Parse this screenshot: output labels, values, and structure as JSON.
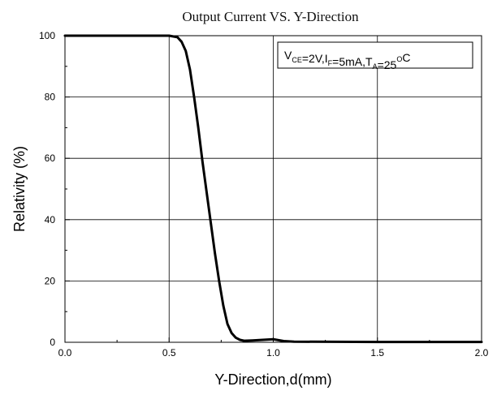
{
  "chart_data": {
    "type": "line",
    "title": "Output Current VS. Y-Direction",
    "xlabel": "Y-Direction,d(mm)",
    "ylabel": "Relativity (%)",
    "xlim": [
      0.0,
      2.0
    ],
    "ylim": [
      0,
      100
    ],
    "x_ticks": [
      "0.0",
      "0.5",
      "1.0",
      "1.5",
      "2.0"
    ],
    "y_ticks": [
      "0",
      "20",
      "40",
      "60",
      "80",
      "100"
    ],
    "grid": true,
    "annotation": {
      "parts": [
        {
          "text": "V",
          "sub": false
        },
        {
          "text": "CE",
          "sub": true
        },
        {
          "text": "=2V,I",
          "sub": false
        },
        {
          "text": "F",
          "sub": true
        },
        {
          "text": "=5mA,T",
          "sub": false
        },
        {
          "text": "A",
          "sub": true
        },
        {
          "text": "=25",
          "sub": false
        },
        {
          "text": "O",
          "sup": true
        },
        {
          "text": "C",
          "sub": false
        }
      ],
      "placement": "top-right"
    },
    "series": [
      {
        "x": [
          0.0,
          0.5,
          0.54,
          0.56,
          0.58,
          0.6,
          0.62,
          0.64,
          0.66,
          0.68,
          0.7,
          0.72,
          0.74,
          0.76,
          0.78,
          0.8,
          0.82,
          0.84,
          0.86,
          0.9,
          0.95,
          1.0,
          1.05,
          1.1,
          1.5,
          2.0
        ],
        "y": [
          100,
          100,
          99.5,
          98,
          95,
          89,
          80,
          70,
          59,
          49,
          39,
          29,
          20,
          12,
          6,
          3,
          1.5,
          0.8,
          0.5,
          0.6,
          0.8,
          1.0,
          0.4,
          0.2,
          0.1,
          0.1
        ]
      }
    ],
    "colors": {
      "line": "#000000",
      "grid": "#000000"
    }
  }
}
